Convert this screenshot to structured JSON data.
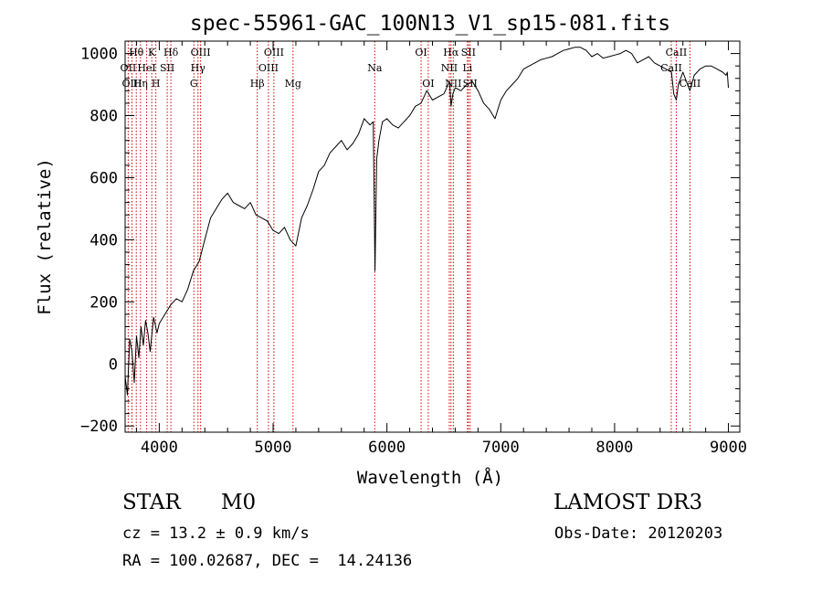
{
  "chart_data": {
    "type": "line",
    "title": "spec-55961-GAC_100N13_V1_sp15-081.fits",
    "xlabel": "Wavelength (Å)",
    "ylabel": "Flux (relative)",
    "xlim": [
      3700,
      9100
    ],
    "ylim": [
      -220,
      1040
    ],
    "x_ticks": [
      4000,
      5000,
      6000,
      7000,
      8000,
      9000
    ],
    "y_ticks": [
      -200,
      0,
      200,
      400,
      600,
      800,
      1000
    ],
    "grid": false,
    "line_color": "#000000",
    "marker_color": "#cc0000",
    "series": [
      {
        "name": "spectrum",
        "x": [
          3700,
          3720,
          3740,
          3760,
          3780,
          3800,
          3820,
          3840,
          3860,
          3880,
          3900,
          3920,
          3950,
          3980,
          4000,
          4050,
          4100,
          4150,
          4200,
          4250,
          4300,
          4350,
          4400,
          4450,
          4500,
          4550,
          4600,
          4650,
          4700,
          4750,
          4800,
          4850,
          4900,
          4950,
          5000,
          5050,
          5100,
          5150,
          5200,
          5250,
          5300,
          5350,
          5400,
          5450,
          5500,
          5550,
          5600,
          5650,
          5700,
          5750,
          5800,
          5850,
          5880,
          5895,
          5910,
          5930,
          5960,
          6000,
          6050,
          6100,
          6150,
          6200,
          6250,
          6300,
          6350,
          6400,
          6450,
          6500,
          6550,
          6563,
          6580,
          6600,
          6650,
          6700,
          6750,
          6800,
          6850,
          6900,
          6950,
          7000,
          7050,
          7100,
          7150,
          7200,
          7250,
          7300,
          7350,
          7400,
          7450,
          7500,
          7550,
          7600,
          7650,
          7700,
          7750,
          7800,
          7850,
          7900,
          7950,
          8000,
          8050,
          8100,
          8150,
          8200,
          8250,
          8300,
          8350,
          8400,
          8450,
          8500,
          8520,
          8542,
          8560,
          8600,
          8662,
          8700,
          8750,
          8800,
          8850,
          8900,
          8950,
          8980,
          8990,
          9000
        ],
        "y": [
          -40,
          -100,
          80,
          40,
          -60,
          90,
          20,
          120,
          60,
          140,
          100,
          40,
          150,
          100,
          130,
          160,
          190,
          210,
          200,
          240,
          300,
          330,
          400,
          470,
          500,
          530,
          550,
          520,
          510,
          500,
          520,
          480,
          470,
          460,
          430,
          420,
          440,
          400,
          380,
          470,
          510,
          560,
          620,
          640,
          680,
          700,
          720,
          690,
          710,
          740,
          790,
          770,
          780,
          300,
          660,
          720,
          780,
          790,
          770,
          760,
          780,
          800,
          830,
          840,
          880,
          850,
          860,
          870,
          910,
          830,
          870,
          890,
          880,
          900,
          910,
          880,
          840,
          820,
          790,
          850,
          880,
          900,
          920,
          950,
          960,
          970,
          980,
          985,
          990,
          1000,
          1010,
          1015,
          1020,
          1020,
          1010,
          990,
          1000,
          985,
          990,
          995,
          1000,
          1010,
          1000,
          970,
          980,
          990,
          970,
          960,
          950,
          940,
          870,
          850,
          900,
          940,
          880,
          930,
          950,
          960,
          960,
          950,
          940,
          930,
          940,
          890
        ]
      }
    ],
    "lines": [
      {
        "label": "Hθ",
        "wl": 3798,
        "row": 0
      },
      {
        "label": "OII",
        "wl": 3727,
        "row": 1
      },
      {
        "label": "OIII",
        "wl": 3760,
        "row": 2
      },
      {
        "label": "K",
        "wl": 3934,
        "row": 0
      },
      {
        "label": "HeI",
        "wl": 3889,
        "row": 1
      },
      {
        "label": "Hη",
        "wl": 3835,
        "row": 2
      },
      {
        "label": "H",
        "wl": 3970,
        "row": 2
      },
      {
        "label": "Hδ",
        "wl": 4102,
        "row": 0
      },
      {
        "label": "SII",
        "wl": 4070,
        "row": 1
      },
      {
        "label": "OIII",
        "wl": 4363,
        "row": 0
      },
      {
        "label": "Hγ",
        "wl": 4340,
        "row": 1
      },
      {
        "label": "G",
        "wl": 4304,
        "row": 2
      },
      {
        "label": "Hβ",
        "wl": 4861,
        "row": 2
      },
      {
        "label": "OIII",
        "wl": 5007,
        "row": 0
      },
      {
        "label": "OIII",
        "wl": 4959,
        "row": 1
      },
      {
        "label": "Mg",
        "wl": 5175,
        "row": 2
      },
      {
        "label": "Na",
        "wl": 5893,
        "row": 1
      },
      {
        "label": "OI",
        "wl": 6300,
        "row": 0
      },
      {
        "label": "OI",
        "wl": 6363,
        "row": 2
      },
      {
        "label": "Hα",
        "wl": 6563,
        "row": 0
      },
      {
        "label": "NII",
        "wl": 6548,
        "row": 1
      },
      {
        "label": "NII",
        "wl": 6583,
        "row": 2
      },
      {
        "label": "SII",
        "wl": 6716,
        "row": 0
      },
      {
        "label": "Li",
        "wl": 6708,
        "row": 1
      },
      {
        "label": "SII",
        "wl": 6731,
        "row": 2
      },
      {
        "label": "CaII",
        "wl": 8542,
        "row": 0
      },
      {
        "label": "CaII",
        "wl": 8498,
        "row": 1
      },
      {
        "label": "CaII",
        "wl": 8662,
        "row": 2
      }
    ]
  },
  "info": {
    "object_class": "STAR",
    "subclass": "M0",
    "survey": "LAMOST DR3",
    "redshift": "cz = 13.2 ± 0.9 km/s",
    "obs_date": "Obs-Date: 20120203",
    "coords": "RA = 100.02687, DEC =  14.24136"
  }
}
